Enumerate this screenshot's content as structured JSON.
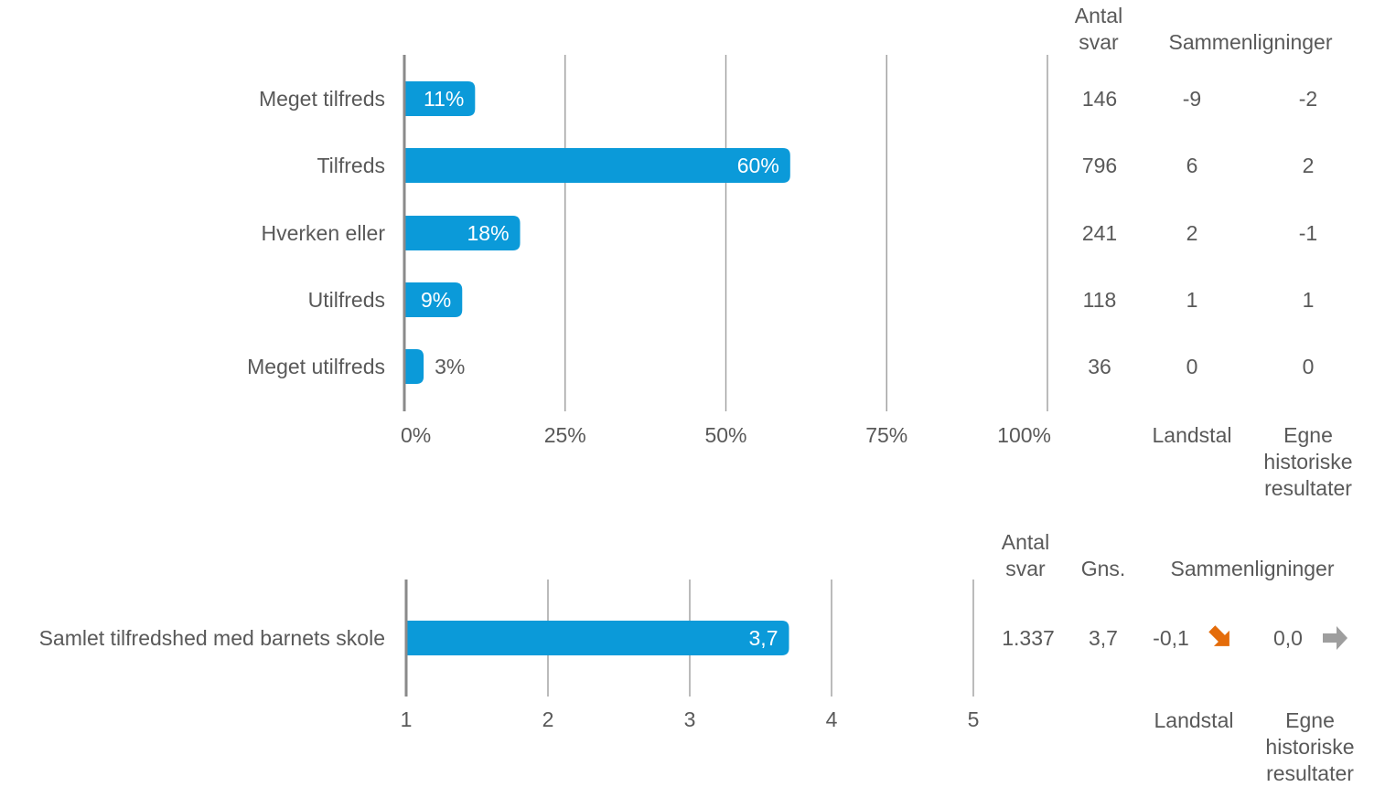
{
  "colors": {
    "bar": "#0b9ad9",
    "grid": "#9e9e9e",
    "axis": "#8a8a8a",
    "text": "#595959",
    "down_arrow": "#e46c0a",
    "neutral_arrow": "#9e9e9e"
  },
  "chart_data": [
    {
      "type": "bar",
      "orientation": "horizontal",
      "categories": [
        "Meget tilfreds",
        "Tilfreds",
        "Hverken eller",
        "Utilfreds",
        "Meget utilfreds"
      ],
      "values": [
        11,
        60,
        18,
        9,
        3
      ],
      "value_labels": [
        "11%",
        "60%",
        "18%",
        "9%",
        "3%"
      ],
      "xlim": [
        0,
        100
      ],
      "x_ticks": [
        0,
        25,
        50,
        75,
        100
      ],
      "x_tick_labels": [
        "0%",
        "25%",
        "50%",
        "75%",
        "100%"
      ],
      "grid": true,
      "table": {
        "antal_header": "Antal svar",
        "sammenligninger_header": "Sammenligninger",
        "footer_landstal": "Landstal",
        "footer_egne": "Egne historiske resultater",
        "antal_svar": [
          "146",
          "796",
          "241",
          "118",
          "36"
        ],
        "landstal": [
          "-9",
          "6",
          "2",
          "1",
          "0"
        ],
        "egne": [
          "-2",
          "2",
          "-1",
          "1",
          "0"
        ]
      }
    },
    {
      "type": "bar",
      "orientation": "horizontal",
      "categories": [
        "Samlet tilfredshed med barnets skole"
      ],
      "values": [
        3.7
      ],
      "value_labels": [
        "3,7"
      ],
      "xlim": [
        1,
        5
      ],
      "x_ticks": [
        1,
        2,
        3,
        4,
        5
      ],
      "x_tick_labels": [
        "1",
        "2",
        "3",
        "4",
        "5"
      ],
      "grid": true,
      "table": {
        "antal_header": "Antal svar",
        "gns_header": "Gns.",
        "sammenligninger_header": "Sammenligninger",
        "footer_landstal": "Landstal",
        "footer_egne": "Egne historiske resultater",
        "antal_svar": "1.337",
        "gns": "3,7",
        "landstal": "-0,1",
        "landstal_trend": "down-right-arrow-icon",
        "egne": "0,0",
        "egne_trend": "right-arrow-icon"
      }
    }
  ]
}
